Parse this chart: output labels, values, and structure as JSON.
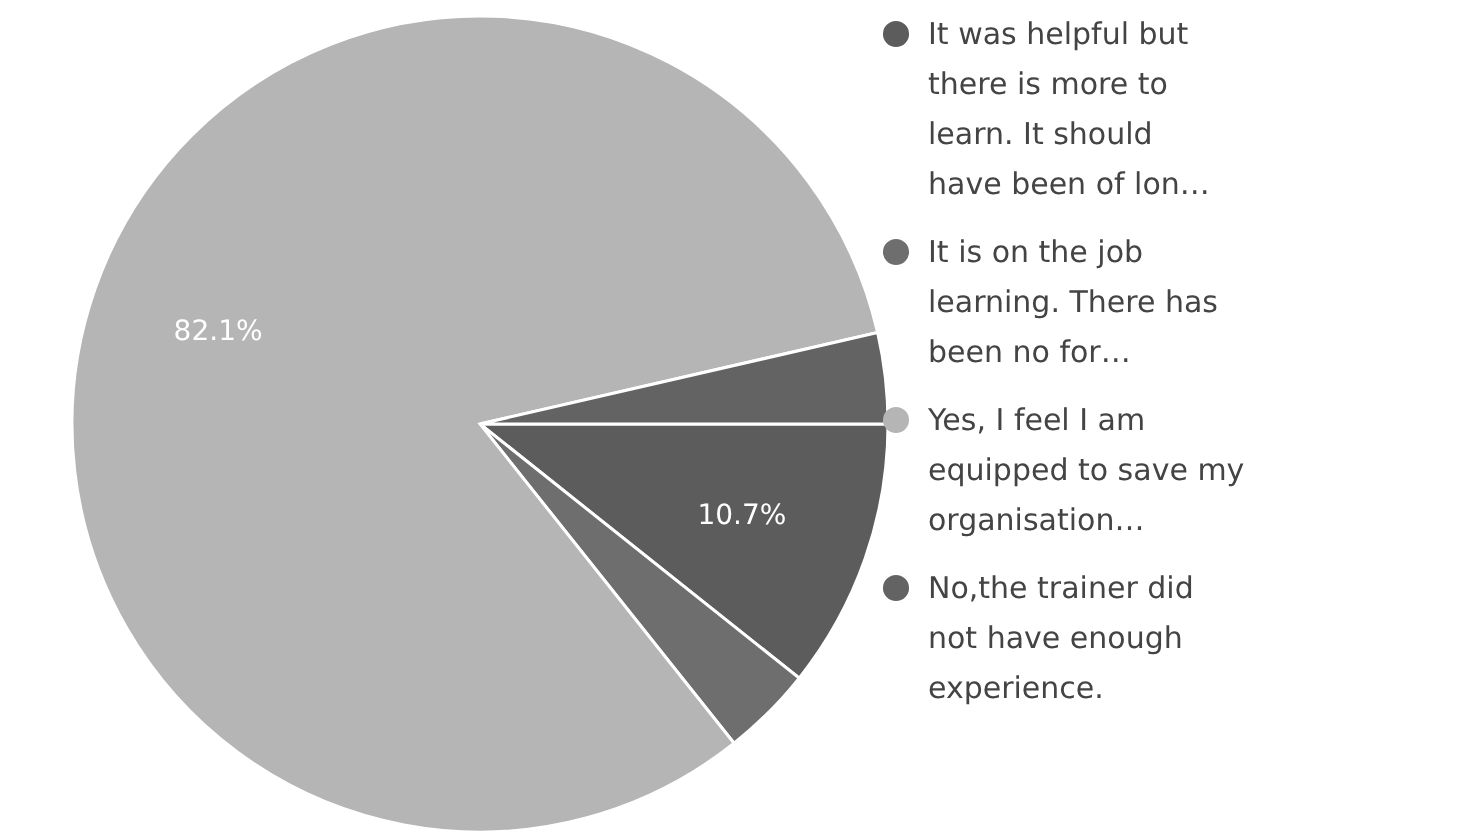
{
  "chart_data": {
    "type": "pie",
    "categories": [
      "It was helpful but there is more to learn. It should have been of lon…",
      "It is on the job learning. There has been no for…",
      "Yes, I feel I am equipped to save my organisation…",
      "No,the trainer did not have enough experience."
    ],
    "values": [
      10.7,
      3.6,
      82.1,
      3.6
    ],
    "value_labels": [
      "10.7%",
      null,
      "82.1%",
      null
    ],
    "colors": [
      "#5c5c5c",
      "#6e6e6e",
      "#b5b5b5",
      "#636363"
    ],
    "legend": "right"
  }
}
